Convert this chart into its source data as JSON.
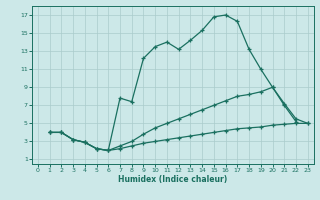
{
  "xlabel": "Humidex (Indice chaleur)",
  "bg_color": "#cce8e8",
  "grid_color": "#aacccc",
  "line_color": "#1a7060",
  "xlim": [
    -0.5,
    23.5
  ],
  "ylim": [
    0.5,
    18
  ],
  "xticks": [
    0,
    1,
    2,
    3,
    4,
    5,
    6,
    7,
    8,
    9,
    10,
    11,
    12,
    13,
    14,
    15,
    16,
    17,
    18,
    19,
    20,
    21,
    22,
    23
  ],
  "yticks": [
    1,
    3,
    5,
    7,
    9,
    11,
    13,
    15,
    17
  ],
  "line1_x": [
    1,
    2,
    3,
    4,
    5,
    6,
    7,
    8,
    9,
    10,
    11,
    12,
    13,
    14,
    15,
    16,
    17,
    18,
    19,
    20,
    21,
    22
  ],
  "line1_y": [
    4,
    4,
    3.2,
    2.9,
    2.2,
    2.0,
    7.8,
    7.4,
    12.2,
    13.5,
    14.0,
    13.2,
    14.2,
    15.3,
    16.8,
    17.0,
    16.3,
    13.2,
    11.0,
    9.0,
    7.0,
    5.2
  ],
  "line3_x": [
    1,
    2,
    3,
    4,
    5,
    6,
    7,
    8,
    9,
    10,
    11,
    12,
    13,
    14,
    15,
    16,
    17,
    18,
    19,
    20,
    21,
    22,
    23
  ],
  "line3_y": [
    4,
    4,
    3.2,
    2.9,
    2.2,
    2.0,
    2.5,
    3.0,
    3.8,
    4.5,
    5.0,
    5.5,
    6.0,
    6.5,
    7.0,
    7.5,
    8.0,
    8.2,
    8.5,
    9.0,
    7.2,
    5.5,
    5.0
  ],
  "line2_x": [
    1,
    2,
    3,
    4,
    5,
    6,
    7,
    8,
    9,
    10,
    11,
    12,
    13,
    14,
    15,
    16,
    17,
    18,
    19,
    20,
    21,
    22,
    23
  ],
  "line2_y": [
    4,
    4,
    3.2,
    2.9,
    2.2,
    2.0,
    2.2,
    2.5,
    2.8,
    3.0,
    3.2,
    3.4,
    3.6,
    3.8,
    4.0,
    4.2,
    4.4,
    4.5,
    4.6,
    4.8,
    4.9,
    5.0,
    5.0
  ]
}
